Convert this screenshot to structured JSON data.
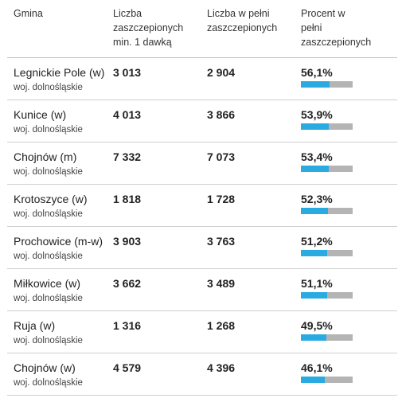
{
  "header": {
    "gmina": "Gmina",
    "dose1_line1": "Liczba",
    "dose1_line2": "zaszczepionych",
    "dose1_line3": "min. 1 dawką",
    "full_line1": "Liczba w pełni",
    "full_line2": "zaszczepionych",
    "pct_line1": "Procent w",
    "pct_line2": "pełni",
    "pct_line3": "zaszczepionych"
  },
  "colors": {
    "bar_fill": "#29abe2",
    "bar_track": "#b4b4b4"
  },
  "rows": [
    {
      "name": "Legnickie Pole (w)",
      "region": "woj. dolnośląskie",
      "dose1": "3 013",
      "full": "2 904",
      "pct_label": "56,1%",
      "pct": 56.1
    },
    {
      "name": "Kunice (w)",
      "region": "woj. dolnośląskie",
      "dose1": "4 013",
      "full": "3 866",
      "pct_label": "53,9%",
      "pct": 53.9
    },
    {
      "name": "Chojnów (m)",
      "region": "woj. dolnośląskie",
      "dose1": "7 332",
      "full": "7 073",
      "pct_label": "53,4%",
      "pct": 53.4
    },
    {
      "name": "Krotoszyce (w)",
      "region": "woj. dolnośląskie",
      "dose1": "1 818",
      "full": "1 728",
      "pct_label": "52,3%",
      "pct": 52.3
    },
    {
      "name": "Prochowice (m-w)",
      "region": "woj. dolnośląskie",
      "dose1": "3 903",
      "full": "3 763",
      "pct_label": "51,2%",
      "pct": 51.2
    },
    {
      "name": "Miłkowice (w)",
      "region": "woj. dolnośląskie",
      "dose1": "3 662",
      "full": "3 489",
      "pct_label": "51,1%",
      "pct": 51.1
    },
    {
      "name": "Ruja (w)",
      "region": "woj. dolnośląskie",
      "dose1": "1 316",
      "full": "1 268",
      "pct_label": "49,5%",
      "pct": 49.5
    },
    {
      "name": "Chojnów (w)",
      "region": "woj. dolnośląskie",
      "dose1": "4 579",
      "full": "4 396",
      "pct_label": "46,1%",
      "pct": 46.1
    }
  ]
}
